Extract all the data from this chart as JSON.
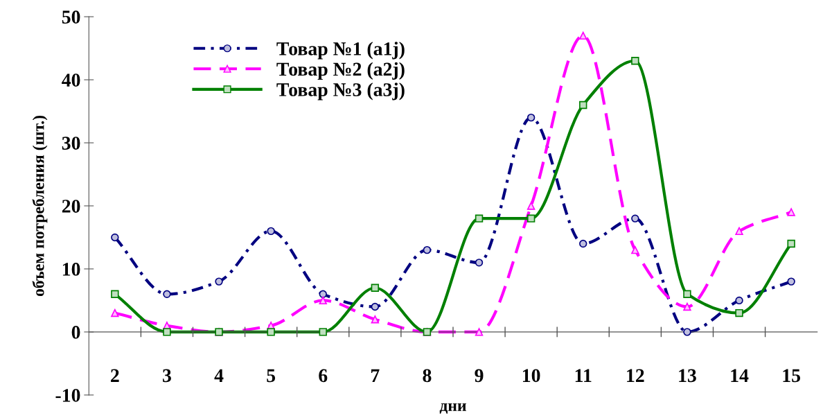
{
  "chart_data": {
    "type": "line",
    "xlabel": "дни",
    "ylabel": "объем потребления (шт.)",
    "categories": [
      "2",
      "3",
      "4",
      "5",
      "6",
      "7",
      "8",
      "9",
      "10",
      "11",
      "12",
      "13",
      "14",
      "15"
    ],
    "series": [
      {
        "name": "Товар №1 (a1j)",
        "color": "#000080",
        "marker": "circle",
        "line_style": "dashdot",
        "values": [
          15,
          6,
          8,
          16,
          6,
          4,
          13,
          11,
          34,
          14,
          18,
          0,
          5,
          8
        ]
      },
      {
        "name": "Товар №2 (a2j)",
        "color": "#ff00ff",
        "marker": "triangle",
        "line_style": "dashed",
        "values": [
          3,
          1,
          0,
          1,
          5,
          2,
          0,
          0,
          20,
          47,
          13,
          4,
          16,
          19
        ]
      },
      {
        "name": "Товар №3 (a3j)",
        "color": "#008000",
        "marker": "square",
        "line_style": "solid",
        "values": [
          6,
          0,
          0,
          0,
          0,
          7,
          0,
          18,
          18,
          36,
          43,
          6,
          3,
          14
        ]
      }
    ],
    "ylim": [
      -10,
      50
    ],
    "yticks": [
      -10,
      0,
      10,
      20,
      30,
      40,
      50
    ],
    "grid": false,
    "legend": "top left"
  }
}
